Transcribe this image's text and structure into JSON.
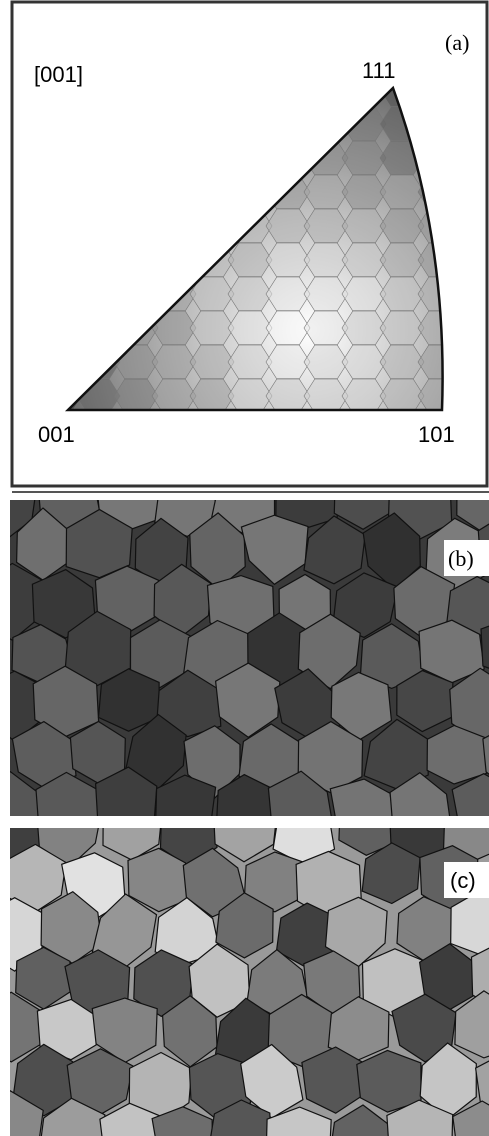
{
  "panel_a": {
    "label": "(a)",
    "direction": "[001]",
    "corners": [
      "111",
      "001",
      "101"
    ]
  },
  "panel_b": {
    "label": "(b)"
  },
  "panel_c": {
    "label": "(c)"
  }
}
